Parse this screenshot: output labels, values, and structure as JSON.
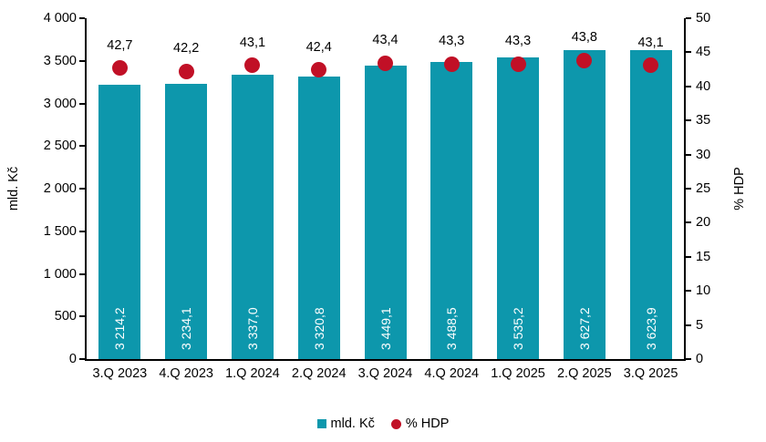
{
  "chart_data": {
    "type": "bar",
    "title": "",
    "categories": [
      "3.Q 2023",
      "4.Q 2023",
      "1.Q 2024",
      "2.Q 2024",
      "3.Q 2024",
      "4.Q 2024",
      "1.Q 2025",
      "2.Q 2025",
      "3.Q 2025"
    ],
    "series": [
      {
        "name": "mld. Kč",
        "type": "bar",
        "marker": "square",
        "axis": "left",
        "color": "#0d97ac",
        "values": [
          3214.2,
          3234.1,
          3337.0,
          3320.8,
          3449.1,
          3488.5,
          3535.2,
          3627.2,
          3623.9
        ],
        "labels": [
          "3 214,2",
          "3 234,1",
          "3 337,0",
          "3 320,8",
          "3 449,1",
          "3 488,5",
          "3 535,2",
          "3 627,2",
          "3 623,9"
        ]
      },
      {
        "name": "% HDP",
        "type": "scatter",
        "marker": "circle",
        "axis": "right",
        "color": "#c11026",
        "values": [
          42.7,
          42.2,
          43.1,
          42.4,
          43.4,
          43.3,
          43.3,
          43.8,
          43.1
        ],
        "labels": [
          "42,7",
          "42,2",
          "43,1",
          "42,4",
          "43,4",
          "43,3",
          "43,3",
          "43,8",
          "43,1"
        ]
      }
    ],
    "left_axis": {
      "label": "mld. Kč",
      "min": 0,
      "max": 4000,
      "step": 500,
      "ticks": [
        "0",
        "500",
        "1 000",
        "1 500",
        "2 000",
        "2 500",
        "3 000",
        "3 500",
        "4 000"
      ]
    },
    "right_axis": {
      "label": "% HDP",
      "min": 0,
      "max": 50,
      "step": 5,
      "ticks": [
        "0",
        "5",
        "10",
        "15",
        "20",
        "25",
        "30",
        "35",
        "40",
        "45",
        "50"
      ]
    },
    "legend": {
      "position": "bottom",
      "items": [
        "mld. Kč",
        "% HDP"
      ]
    },
    "grid": false
  }
}
